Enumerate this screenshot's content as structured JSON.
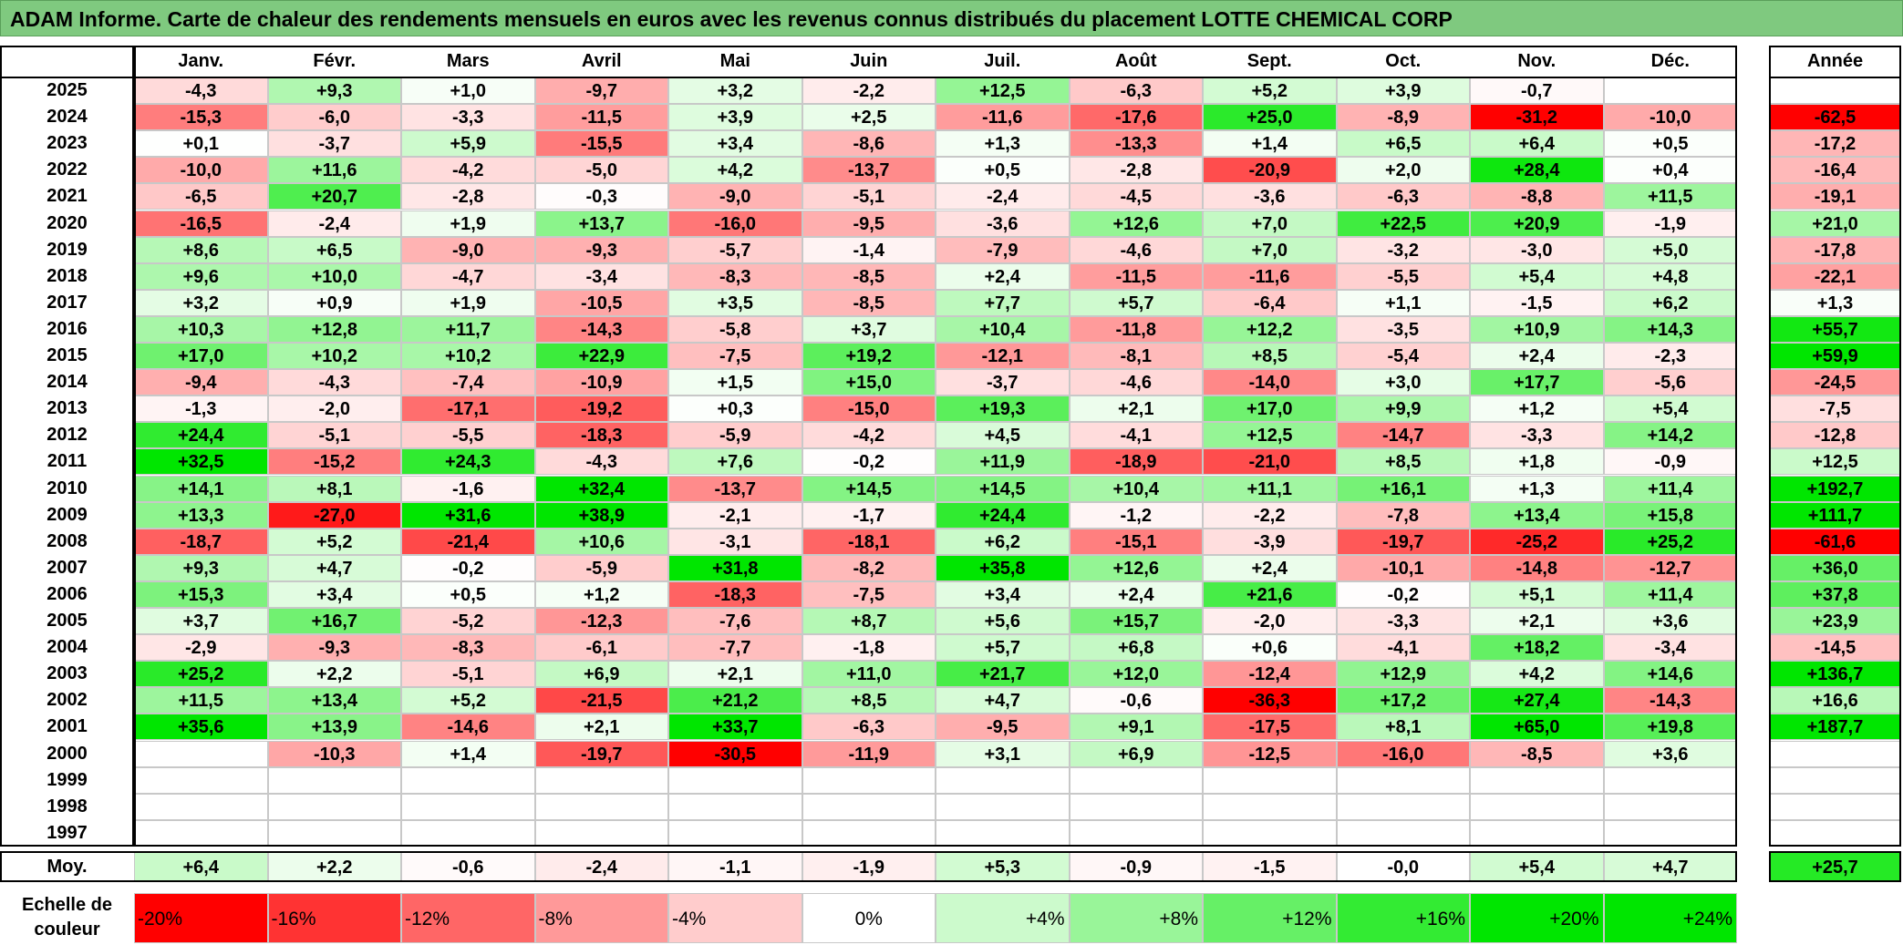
{
  "title": "ADAM Informe. Carte de chaleur des rendements mensuels en euros avec les revenus connus distribués du placement LOTTE CHEMICAL CORP",
  "chart_data": {
    "type": "heatmap",
    "months": [
      "Janv.",
      "Févr.",
      "Mars",
      "Avril",
      "Mai",
      "Juin",
      "Juil.",
      "Août",
      "Sept.",
      "Oct.",
      "Nov.",
      "Déc."
    ],
    "year_header": "Année",
    "rows": [
      {
        "year": "2025",
        "values": [
          "-4,3",
          "+9,3",
          "+1,0",
          "-9,7",
          "+3,2",
          "-2,2",
          "+12,5",
          "-6,3",
          "+5,2",
          "+3,9",
          "-0,7",
          ""
        ],
        "annual": ""
      },
      {
        "year": "2024",
        "values": [
          "-15,3",
          "-6,0",
          "-3,3",
          "-11,5",
          "+3,9",
          "+2,5",
          "-11,6",
          "-17,6",
          "+25,0",
          "-8,9",
          "-31,2",
          "-10,0"
        ],
        "annual": "-62,5"
      },
      {
        "year": "2023",
        "values": [
          "+0,1",
          "-3,7",
          "+5,9",
          "-15,5",
          "+3,4",
          "-8,6",
          "+1,3",
          "-13,3",
          "+1,4",
          "+6,5",
          "+6,4",
          "+0,5"
        ],
        "annual": "-17,2"
      },
      {
        "year": "2022",
        "values": [
          "-10,0",
          "+11,6",
          "-4,2",
          "-5,0",
          "+4,2",
          "-13,7",
          "+0,5",
          "-2,8",
          "-20,9",
          "+2,0",
          "+28,4",
          "+0,4"
        ],
        "annual": "-16,4"
      },
      {
        "year": "2021",
        "values": [
          "-6,5",
          "+20,7",
          "-2,8",
          "-0,3",
          "-9,0",
          "-5,1",
          "-2,4",
          "-4,5",
          "-3,6",
          "-6,3",
          "-8,8",
          "+11,5"
        ],
        "annual": "-19,1"
      },
      {
        "year": "2020",
        "values": [
          "-16,5",
          "-2,4",
          "+1,9",
          "+13,7",
          "-16,0",
          "-9,5",
          "-3,6",
          "+12,6",
          "+7,0",
          "+22,5",
          "+20,9",
          "-1,9"
        ],
        "annual": "+21,0"
      },
      {
        "year": "2019",
        "values": [
          "+8,6",
          "+6,5",
          "-9,0",
          "-9,3",
          "-5,7",
          "-1,4",
          "-7,9",
          "-4,6",
          "+7,0",
          "-3,2",
          "-3,0",
          "+5,0"
        ],
        "annual": "-17,8"
      },
      {
        "year": "2018",
        "values": [
          "+9,6",
          "+10,0",
          "-4,7",
          "-3,4",
          "-8,3",
          "-8,5",
          "+2,4",
          "-11,5",
          "-11,6",
          "-5,5",
          "+5,4",
          "+4,8"
        ],
        "annual": "-22,1"
      },
      {
        "year": "2017",
        "values": [
          "+3,2",
          "+0,9",
          "+1,9",
          "-10,5",
          "+3,5",
          "-8,5",
          "+7,7",
          "+5,7",
          "-6,4",
          "+1,1",
          "-1,5",
          "+6,2"
        ],
        "annual": "+1,3"
      },
      {
        "year": "2016",
        "values": [
          "+10,3",
          "+12,8",
          "+11,7",
          "-14,3",
          "-5,8",
          "+3,7",
          "+10,4",
          "-11,8",
          "+12,2",
          "-3,5",
          "+10,9",
          "+14,3"
        ],
        "annual": "+55,7"
      },
      {
        "year": "2015",
        "values": [
          "+17,0",
          "+10,2",
          "+10,2",
          "+22,9",
          "-7,5",
          "+19,2",
          "-12,1",
          "-8,1",
          "+8,5",
          "-5,4",
          "+2,4",
          "-2,3"
        ],
        "annual": "+59,9"
      },
      {
        "year": "2014",
        "values": [
          "-9,4",
          "-4,3",
          "-7,4",
          "-10,9",
          "+1,5",
          "+15,0",
          "-3,7",
          "-4,6",
          "-14,0",
          "+3,0",
          "+17,7",
          "-5,6"
        ],
        "annual": "-24,5"
      },
      {
        "year": "2013",
        "values": [
          "-1,3",
          "-2,0",
          "-17,1",
          "-19,2",
          "+0,3",
          "-15,0",
          "+19,3",
          "+2,1",
          "+17,0",
          "+9,9",
          "+1,2",
          "+5,4"
        ],
        "annual": "-7,5"
      },
      {
        "year": "2012",
        "values": [
          "+24,4",
          "-5,1",
          "-5,5",
          "-18,3",
          "-5,9",
          "-4,2",
          "+4,5",
          "-4,1",
          "+12,5",
          "-14,7",
          "-3,3",
          "+14,2"
        ],
        "annual": "-12,8"
      },
      {
        "year": "2011",
        "values": [
          "+32,5",
          "-15,2",
          "+24,3",
          "-4,3",
          "+7,6",
          "-0,2",
          "+11,9",
          "-18,9",
          "-21,0",
          "+8,5",
          "+1,8",
          "-0,9"
        ],
        "annual": "+12,5"
      },
      {
        "year": "2010",
        "values": [
          "+14,1",
          "+8,1",
          "-1,6",
          "+32,4",
          "-13,7",
          "+14,5",
          "+14,5",
          "+10,4",
          "+11,1",
          "+16,1",
          "+1,3",
          "+11,4"
        ],
        "annual": "+192,7"
      },
      {
        "year": "2009",
        "values": [
          "+13,3",
          "-27,0",
          "+31,6",
          "+38,9",
          "-2,1",
          "-1,7",
          "+24,4",
          "-1,2",
          "-2,2",
          "-7,8",
          "+13,4",
          "+15,8"
        ],
        "annual": "+111,7"
      },
      {
        "year": "2008",
        "values": [
          "-18,7",
          "+5,2",
          "-21,4",
          "+10,6",
          "-3,1",
          "-18,1",
          "+6,2",
          "-15,1",
          "-3,9",
          "-19,7",
          "-25,2",
          "+25,2"
        ],
        "annual": "-61,6"
      },
      {
        "year": "2007",
        "values": [
          "+9,3",
          "+4,7",
          "-0,2",
          "-5,9",
          "+31,8",
          "-8,2",
          "+35,8",
          "+12,6",
          "+2,4",
          "-10,1",
          "-14,8",
          "-12,7"
        ],
        "annual": "+36,0"
      },
      {
        "year": "2006",
        "values": [
          "+15,3",
          "+3,4",
          "+0,5",
          "+1,2",
          "-18,3",
          "-7,5",
          "+3,4",
          "+2,4",
          "+21,6",
          "-0,2",
          "+5,1",
          "+11,4"
        ],
        "annual": "+37,8"
      },
      {
        "year": "2005",
        "values": [
          "+3,7",
          "+16,7",
          "-5,2",
          "-12,3",
          "-7,6",
          "+8,7",
          "+5,6",
          "+15,7",
          "-2,0",
          "-3,3",
          "+2,1",
          "+3,6"
        ],
        "annual": "+23,9"
      },
      {
        "year": "2004",
        "values": [
          "-2,9",
          "-9,3",
          "-8,3",
          "-6,1",
          "-7,7",
          "-1,8",
          "+5,7",
          "+6,8",
          "+0,6",
          "-4,1",
          "+18,2",
          "-3,4"
        ],
        "annual": "-14,5"
      },
      {
        "year": "2003",
        "values": [
          "+25,2",
          "+2,2",
          "-5,1",
          "+6,9",
          "+2,1",
          "+11,0",
          "+21,7",
          "+12,0",
          "-12,4",
          "+12,9",
          "+4,2",
          "+14,6"
        ],
        "annual": "+136,7"
      },
      {
        "year": "2002",
        "values": [
          "+11,5",
          "+13,4",
          "+5,2",
          "-21,5",
          "+21,2",
          "+8,5",
          "+4,7",
          "-0,6",
          "-36,3",
          "+17,2",
          "+27,4",
          "-14,3"
        ],
        "annual": "+16,6"
      },
      {
        "year": "2001",
        "values": [
          "+35,6",
          "+13,9",
          "-14,6",
          "+2,1",
          "+33,7",
          "-6,3",
          "-9,5",
          "+9,1",
          "-17,5",
          "+8,1",
          "+65,0",
          "+19,8"
        ],
        "annual": "+187,7"
      },
      {
        "year": "2000",
        "values": [
          "",
          "-10,3",
          "+1,4",
          "-19,7",
          "-30,5",
          "-11,9",
          "+3,1",
          "+6,9",
          "-12,5",
          "-16,0",
          "-8,5",
          "+3,6"
        ],
        "annual": ""
      },
      {
        "year": "1999",
        "values": [
          "",
          "",
          "",
          "",
          "",
          "",
          "",
          "",
          "",
          "",
          "",
          ""
        ],
        "annual": ""
      },
      {
        "year": "1998",
        "values": [
          "",
          "",
          "",
          "",
          "",
          "",
          "",
          "",
          "",
          "",
          "",
          ""
        ],
        "annual": ""
      },
      {
        "year": "1997",
        "values": [
          "",
          "",
          "",
          "",
          "",
          "",
          "",
          "",
          "",
          "",
          "",
          ""
        ],
        "annual": ""
      }
    ],
    "average": {
      "label": "Moy.",
      "values": [
        "+6,4",
        "+2,2",
        "-0,6",
        "-2,4",
        "-1,1",
        "-1,9",
        "+5,3",
        "-0,9",
        "-1,5",
        "-0,0",
        "+5,4",
        "+4,7"
      ],
      "annual": "+25,7"
    },
    "color_scale": {
      "label": "Echelle de couleur",
      "steps": [
        "-20%",
        "-16%",
        "-12%",
        "-8%",
        "-4%",
        "0%",
        "+4%",
        "+8%",
        "+12%",
        "+16%",
        "+20%",
        "+24%"
      ]
    },
    "colors": {
      "negative_max": "#ff0000",
      "neutral": "#ffffff",
      "positive_max": "#00e600",
      "title_bg": "#7fc97f"
    }
  }
}
